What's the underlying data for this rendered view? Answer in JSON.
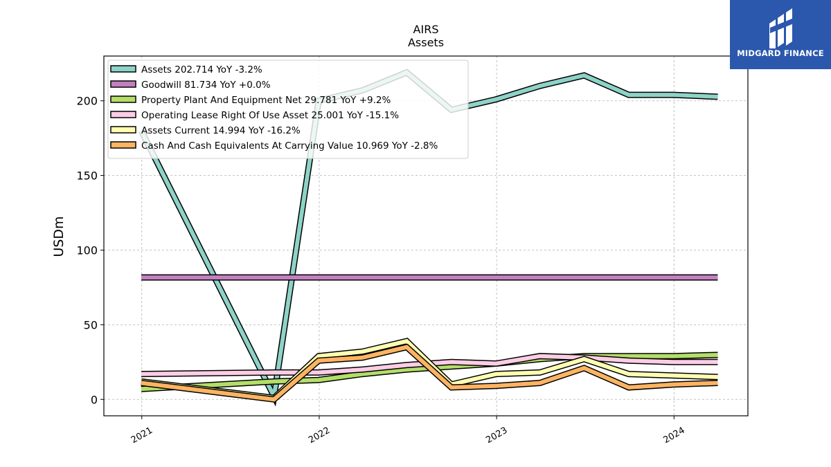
{
  "chart_data": {
    "type": "line",
    "title": "AIRS",
    "subtitle": "Assets",
    "ylabel": "USDm",
    "xlabel": "",
    "xlim": [
      "2020-10-15",
      "2024-06-01"
    ],
    "ylim": [
      -11,
      230
    ],
    "yticks": [
      0,
      50,
      100,
      150,
      200
    ],
    "xticks": [
      "2021",
      "2022",
      "2023",
      "2024"
    ],
    "grid": true,
    "legend_position": "top-left",
    "x": [
      "2020-12-31",
      "2021-09-30",
      "2021-12-31",
      "2022-03-31",
      "2022-06-30",
      "2022-09-30",
      "2022-12-31",
      "2023-03-31",
      "2023-06-30",
      "2023-09-30",
      "2023-12-31",
      "2024-03-31"
    ],
    "series": [
      {
        "name": "Assets",
        "legend": "Assets  202.714 YoY -3.2%",
        "color": "#8dd3c7",
        "values": [
          180,
          2,
          200,
          207,
          219,
          194,
          201,
          210,
          217,
          204,
          204,
          202.7
        ]
      },
      {
        "name": "Goodwill",
        "legend": "Goodwill  81.734 YoY +0.0%",
        "color": "#c27fc0",
        "values": [
          81.7,
          81.7,
          81.7,
          81.7,
          81.7,
          81.7,
          81.7,
          81.7,
          81.7,
          81.7,
          81.7,
          81.7
        ]
      },
      {
        "name": "Property Plant And Equipment Net",
        "legend": "Property Plant And Equipment Net  29.781 YoY +9.2%",
        "color": "#b3de69",
        "values": [
          7,
          12,
          13,
          17,
          20,
          22,
          24,
          27,
          29,
          29,
          29,
          29.8
        ]
      },
      {
        "name": "Operating Lease Right Of Use Asset",
        "legend": "Operating Lease Right Of Use Asset  25.001 YoY -15.1%",
        "color": "#fccde5",
        "values": [
          17,
          18,
          18,
          20,
          23,
          25,
          24,
          29,
          28,
          26,
          25,
          25.0
        ]
      },
      {
        "name": "Assets Current",
        "legend": "Assets Current  14.994 YoY -16.2%",
        "color": "#ffffb3",
        "values": [
          12,
          1,
          29,
          32,
          39,
          10,
          17,
          18,
          27,
          17,
          16,
          15.0
        ]
      },
      {
        "name": "Cash And Cash Equivalents At Carrying Value",
        "legend": "Cash And Cash Equivalents At Carrying Value  10.969 YoY -2.8%",
        "color": "#fdb462",
        "values": [
          11,
          0,
          26,
          28,
          35,
          8,
          9,
          11,
          21,
          8,
          10,
          11.0
        ]
      }
    ]
  },
  "logo": {
    "text": "MIDGARD FINANCE",
    "color": "#2b58ad"
  }
}
